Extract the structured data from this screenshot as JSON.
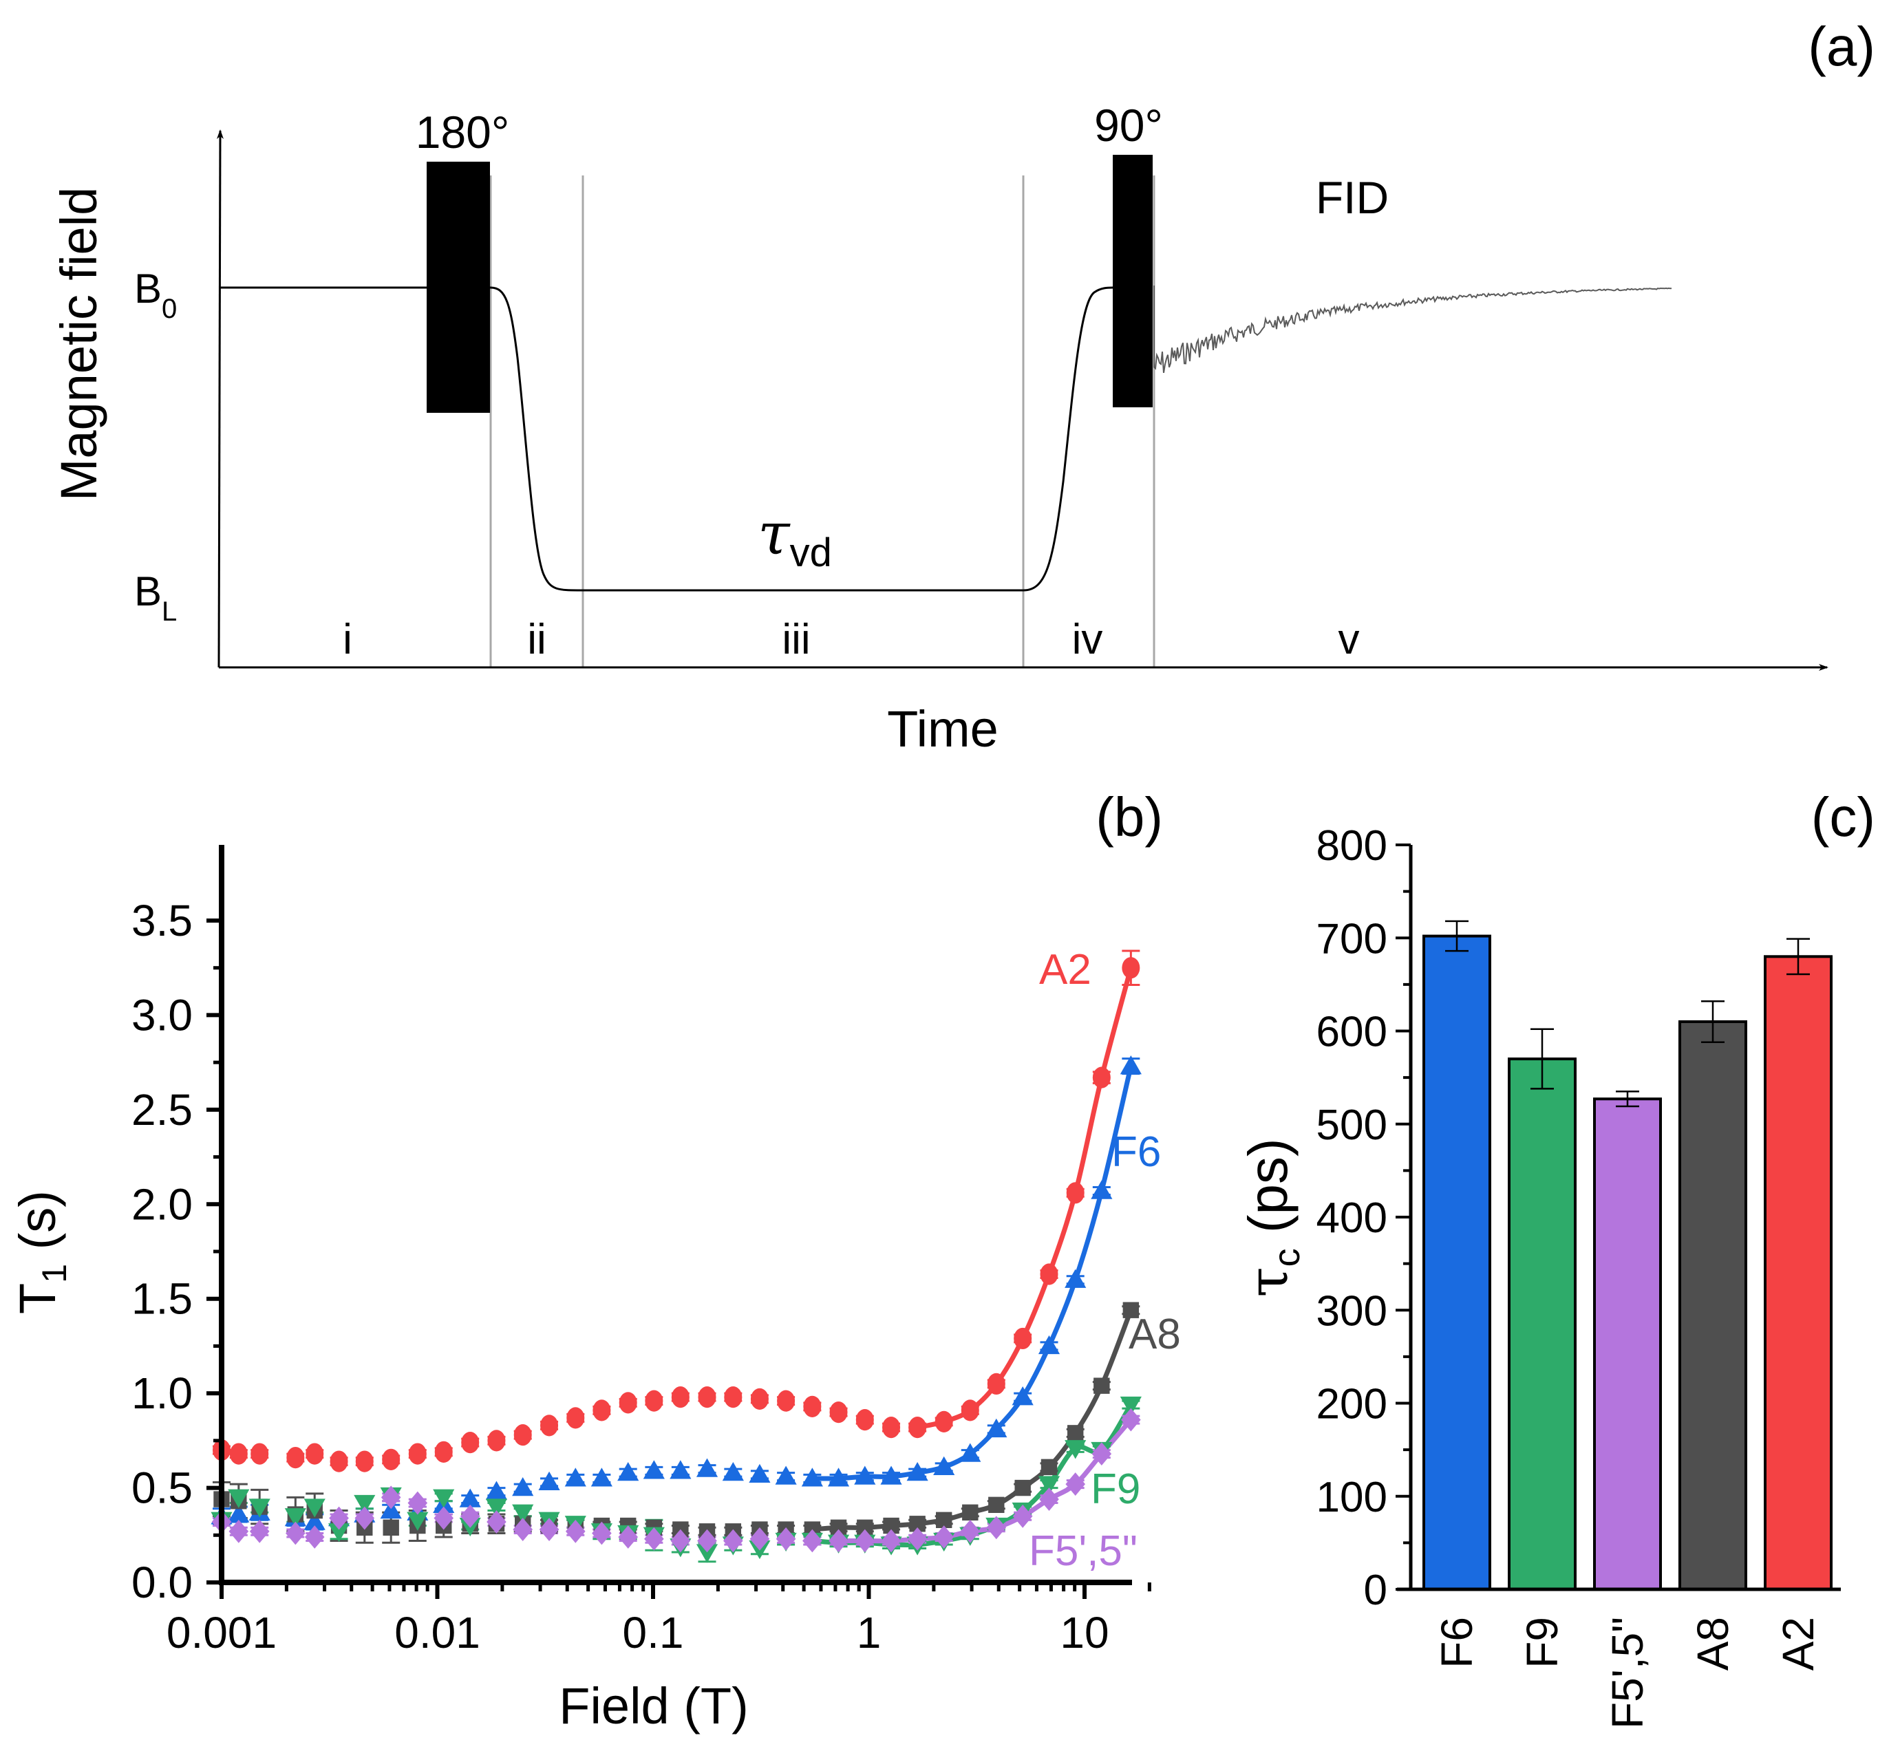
{
  "panel_a": {
    "label": "(a)",
    "ylabel": "Magnetic field",
    "xlabel": "Time",
    "b0_label": "B",
    "b0_sub": "0",
    "bl_label": "B",
    "bl_sub": "L",
    "pulse1_label": "180°",
    "pulse2_label": "90°",
    "fid_label": "FID",
    "tau_label": "τ",
    "tau_sub": "vd",
    "segments": [
      "i",
      "ii",
      "iii",
      "iv",
      "v"
    ]
  },
  "chart_data": [
    {
      "type": "scatter",
      "panel": "(b)",
      "title": "",
      "xlabel": "Field (T)",
      "ylabel_main": "T",
      "ylabel_sub": "1",
      "ylabel_unit": "(s)",
      "xscale": "log",
      "xlim": [
        0.001,
        20
      ],
      "ylim": [
        0,
        3.7
      ],
      "xticks": [
        "0.001",
        "0.01",
        "0.1",
        "1",
        "10"
      ],
      "xtick_values": [
        0.001,
        0.01,
        0.1,
        1,
        10
      ],
      "yticks": [
        "0.0",
        "0.5",
        "1.0",
        "1.5",
        "2.0",
        "2.5",
        "3.0",
        "3.5"
      ],
      "ytick_values": [
        0,
        0.5,
        1.0,
        1.5,
        2.0,
        2.5,
        3.0,
        3.5
      ],
      "grid": false,
      "x": [
        0.001,
        0.0012,
        0.0015,
        0.0022,
        0.0027,
        0.0035,
        0.0046,
        0.0061,
        0.0081,
        0.0107,
        0.0142,
        0.0188,
        0.0249,
        0.033,
        0.0437,
        0.0578,
        0.0766,
        0.101,
        0.134,
        0.178,
        0.235,
        0.312,
        0.413,
        0.547,
        0.724,
        0.959,
        1.27,
        1.68,
        2.23,
        2.95,
        3.9,
        5.17,
        6.85,
        9.07,
        12.0,
        16.4
      ],
      "series": [
        {
          "name": "A2",
          "color": "#f44244",
          "marker": "circle",
          "values": [
            0.7,
            0.68,
            0.68,
            0.66,
            0.68,
            0.64,
            0.64,
            0.65,
            0.68,
            0.69,
            0.74,
            0.75,
            0.78,
            0.83,
            0.87,
            0.91,
            0.95,
            0.96,
            0.98,
            0.98,
            0.98,
            0.97,
            0.96,
            0.93,
            0.9,
            0.86,
            0.82,
            0.82,
            0.85,
            0.91,
            1.05,
            1.29,
            1.63,
            2.06,
            2.67,
            3.25
          ],
          "errors": [
            0.02,
            0.02,
            0.02,
            0.02,
            0.02,
            0.02,
            0.02,
            0.02,
            0.02,
            0.02,
            0.02,
            0.02,
            0.02,
            0.02,
            0.02,
            0.02,
            0.02,
            0.02,
            0.02,
            0.02,
            0.02,
            0.02,
            0.02,
            0.02,
            0.02,
            0.02,
            0.02,
            0.02,
            0.02,
            0.02,
            0.02,
            0.02,
            0.02,
            0.02,
            0.03,
            0.09
          ],
          "fit_from": 1.68,
          "label_text": "A2"
        },
        {
          "name": "F6",
          "color": "#1a6be0",
          "marker": "triangle-up",
          "values": [
            0.35,
            0.36,
            0.37,
            0.34,
            0.32,
            0.34,
            0.36,
            0.38,
            0.37,
            0.41,
            0.44,
            0.48,
            0.5,
            0.53,
            0.55,
            0.55,
            0.58,
            0.59,
            0.59,
            0.6,
            0.58,
            0.57,
            0.56,
            0.55,
            0.55,
            0.56,
            0.56,
            0.58,
            0.61,
            0.68,
            0.81,
            0.98,
            1.25,
            1.6,
            2.07,
            2.73
          ],
          "errors": [
            0.04,
            0.04,
            0.04,
            0.04,
            0.04,
            0.04,
            0.03,
            0.03,
            0.03,
            0.02,
            0.02,
            0.02,
            0.02,
            0.02,
            0.02,
            0.02,
            0.02,
            0.02,
            0.02,
            0.02,
            0.02,
            0.02,
            0.02,
            0.02,
            0.02,
            0.02,
            0.02,
            0.02,
            0.02,
            0.02,
            0.02,
            0.02,
            0.02,
            0.02,
            0.02,
            0.04
          ],
          "fit_from": 0.547,
          "label_text": "F6"
        },
        {
          "name": "A8",
          "color": "#4f4f4f",
          "marker": "square",
          "values": [
            0.44,
            0.43,
            0.4,
            0.36,
            0.38,
            0.3,
            0.29,
            0.29,
            0.3,
            0.3,
            0.31,
            0.31,
            0.31,
            0.3,
            0.3,
            0.3,
            0.3,
            0.29,
            0.28,
            0.27,
            0.27,
            0.28,
            0.28,
            0.28,
            0.29,
            0.29,
            0.3,
            0.31,
            0.33,
            0.37,
            0.41,
            0.5,
            0.61,
            0.79,
            1.04,
            1.44
          ],
          "errors": [
            0.09,
            0.09,
            0.09,
            0.09,
            0.09,
            0.08,
            0.08,
            0.08,
            0.08,
            0.06,
            0.05,
            0.05,
            0.04,
            0.03,
            0.03,
            0.02,
            0.02,
            0.02,
            0.02,
            0.02,
            0.02,
            0.02,
            0.02,
            0.02,
            0.02,
            0.02,
            0.02,
            0.02,
            0.02,
            0.02,
            0.02,
            0.02,
            0.02,
            0.02,
            0.02,
            0.02
          ],
          "fit_from": 0.547,
          "label_text": "A8"
        },
        {
          "name": "F9",
          "color": "#2eab6a",
          "marker": "triangle-down",
          "values": [
            0.33,
            0.45,
            0.4,
            0.35,
            0.4,
            0.27,
            0.42,
            0.46,
            0.33,
            0.45,
            0.3,
            0.4,
            0.37,
            0.33,
            0.31,
            0.27,
            0.26,
            0.25,
            0.19,
            0.16,
            0.2,
            0.18,
            0.22,
            0.22,
            0.21,
            0.21,
            0.2,
            0.2,
            0.22,
            0.25,
            0.3,
            0.38,
            0.52,
            0.71,
            0.7,
            0.94
          ],
          "errors": [
            0.03,
            0.03,
            0.03,
            0.03,
            0.03,
            0.04,
            0.03,
            0.03,
            0.03,
            0.02,
            0.02,
            0.02,
            0.02,
            0.02,
            0.02,
            0.04,
            0.03,
            0.08,
            0.03,
            0.05,
            0.03,
            0.03,
            0.02,
            0.02,
            0.02,
            0.02,
            0.02,
            0.02,
            0.02,
            0.02,
            0.02,
            0.02,
            0.02,
            0.02,
            0.02,
            0.02
          ],
          "fit_from": 0.547,
          "label_text": "F9"
        },
        {
          "name": "F5',5''",
          "color": "#b475dd",
          "marker": "diamond",
          "values": [
            0.32,
            0.27,
            0.27,
            0.26,
            0.24,
            0.34,
            0.34,
            0.45,
            0.42,
            0.34,
            0.35,
            0.32,
            0.28,
            0.28,
            0.27,
            0.26,
            0.24,
            0.23,
            0.22,
            0.22,
            0.22,
            0.23,
            0.23,
            0.22,
            0.22,
            0.22,
            0.22,
            0.23,
            0.24,
            0.27,
            0.29,
            0.35,
            0.44,
            0.52,
            0.68,
            0.86
          ],
          "errors": [
            0.02,
            0.02,
            0.02,
            0.02,
            0.02,
            0.02,
            0.02,
            0.02,
            0.02,
            0.02,
            0.02,
            0.02,
            0.02,
            0.02,
            0.02,
            0.02,
            0.02,
            0.02,
            0.02,
            0.02,
            0.02,
            0.02,
            0.02,
            0.02,
            0.02,
            0.02,
            0.02,
            0.02,
            0.02,
            0.02,
            0.02,
            0.02,
            0.02,
            0.02,
            0.02,
            0.02
          ],
          "fit_from": 0.724,
          "label_text": "F5',5\""
        }
      ]
    },
    {
      "type": "bar",
      "panel": "(c)",
      "title": "",
      "xlabel": "",
      "ylabel_main": "τ",
      "ylabel_sub": "c",
      "ylabel_unit": "(ps)",
      "categories": [
        "F6",
        "F9",
        "F5',5\"",
        "A8",
        "A2"
      ],
      "values": [
        702,
        570,
        527,
        610,
        680
      ],
      "errors": [
        16,
        32,
        8,
        22,
        19
      ],
      "colors": [
        "#1a6be0",
        "#2eab6a",
        "#b475dd",
        "#4f4f4f",
        "#f44244"
      ],
      "ylim": [
        0,
        800
      ],
      "yticks": [
        "0",
        "100",
        "200",
        "300",
        "400",
        "500",
        "600",
        "700",
        "800"
      ],
      "ytick_values": [
        0,
        100,
        200,
        300,
        400,
        500,
        600,
        700,
        800
      ],
      "grid": false
    }
  ]
}
